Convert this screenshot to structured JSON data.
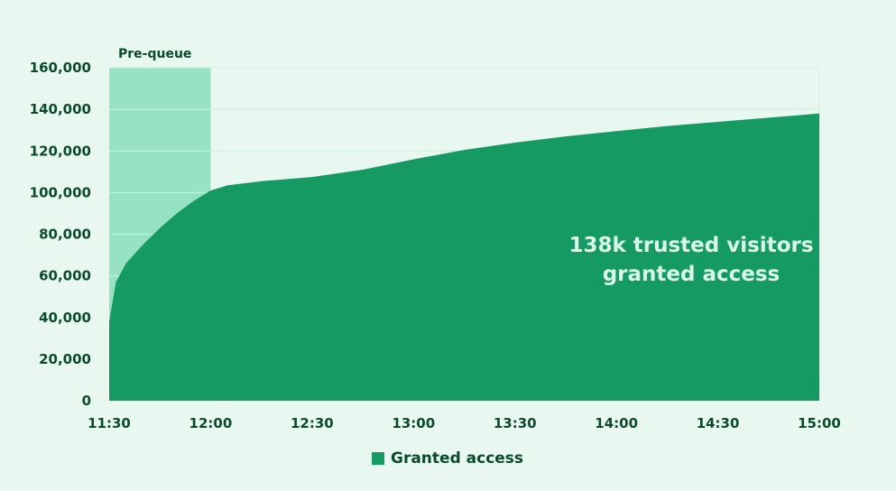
{
  "colors": {
    "background": "#e8f8f0",
    "area": "#169a64",
    "band": "#98e2c4",
    "grid": "#cfeede",
    "text": "#0c4a2c",
    "annotation": "#d9f7e8"
  },
  "chart_data": {
    "type": "area",
    "title": "",
    "xlabel": "",
    "ylabel": "",
    "ylim": [
      0,
      160000
    ],
    "xlim": [
      "11:30",
      "15:00"
    ],
    "y_ticks": [
      "0",
      "20,000",
      "40,000",
      "60,000",
      "80,000",
      "100,000",
      "120,000",
      "140,000",
      "160,000"
    ],
    "x_ticks": [
      "11:30",
      "12:00",
      "12:30",
      "13:00",
      "13:30",
      "14:00",
      "14:30",
      "15:00"
    ],
    "grid": true,
    "legend_position": "bottom-center",
    "series": [
      {
        "name": "Granted access",
        "x": [
          "11:30",
          "11:32",
          "11:35",
          "11:40",
          "11:45",
          "11:50",
          "11:55",
          "12:00",
          "12:05",
          "12:15",
          "12:30",
          "12:45",
          "13:00",
          "13:15",
          "13:30",
          "13:45",
          "14:00",
          "14:15",
          "14:30",
          "14:45",
          "15:00"
        ],
        "values": [
          38000,
          57000,
          66000,
          75000,
          83000,
          90000,
          96000,
          101000,
          103500,
          105500,
          107500,
          111000,
          116000,
          120500,
          124000,
          127000,
          129500,
          132000,
          134000,
          136000,
          138000
        ]
      }
    ],
    "band": {
      "label": "Pre-queue",
      "from": "11:30",
      "to": "12:00"
    },
    "annotation": {
      "line1": "138k trusted visitors",
      "line2": "granted access"
    }
  }
}
